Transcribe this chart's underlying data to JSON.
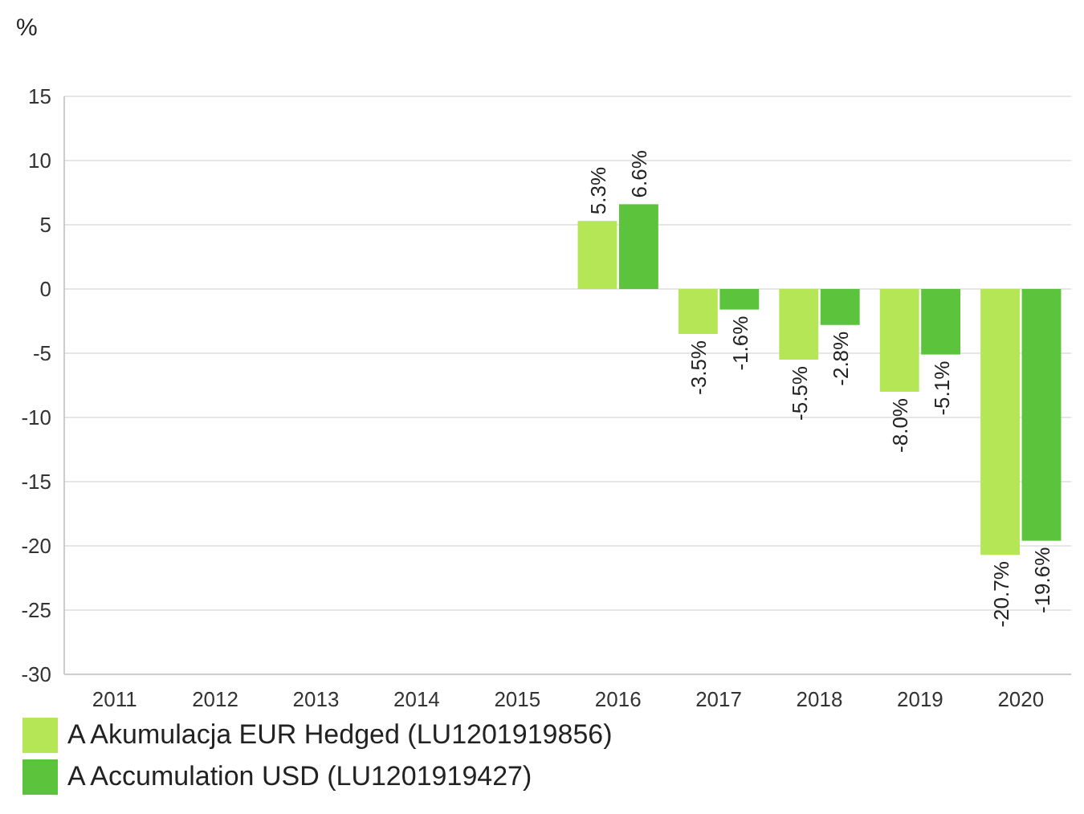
{
  "chart_data": {
    "type": "bar",
    "ylabel": "%",
    "categories": [
      "2011",
      "2012",
      "2013",
      "2014",
      "2015",
      "2016",
      "2017",
      "2018",
      "2019",
      "2020"
    ],
    "series": [
      {
        "name": "A Akumulacja EUR Hedged (LU1201919856)",
        "color": "#b5e655",
        "values": [
          null,
          null,
          null,
          null,
          null,
          5.3,
          -3.5,
          -5.5,
          -8.0,
          -20.7
        ],
        "value_labels": [
          null,
          null,
          null,
          null,
          null,
          "5.3%",
          "-3.5%",
          "-5.5%",
          "-8.0%",
          "-20.7%"
        ]
      },
      {
        "name": "A Accumulation USD (LU1201919427)",
        "color": "#5cc43c",
        "values": [
          null,
          null,
          null,
          null,
          null,
          6.6,
          -1.6,
          -2.8,
          -5.1,
          -19.6
        ],
        "value_labels": [
          null,
          null,
          null,
          null,
          null,
          "6.6%",
          "-1.6%",
          "-2.8%",
          "-5.1%",
          "-19.6%"
        ]
      }
    ],
    "ylim": [
      -30,
      15
    ],
    "yticks": [
      -30,
      -25,
      -20,
      -15,
      -10,
      -5,
      0,
      5,
      10,
      15
    ],
    "grid": "y",
    "legend": "bottom"
  }
}
